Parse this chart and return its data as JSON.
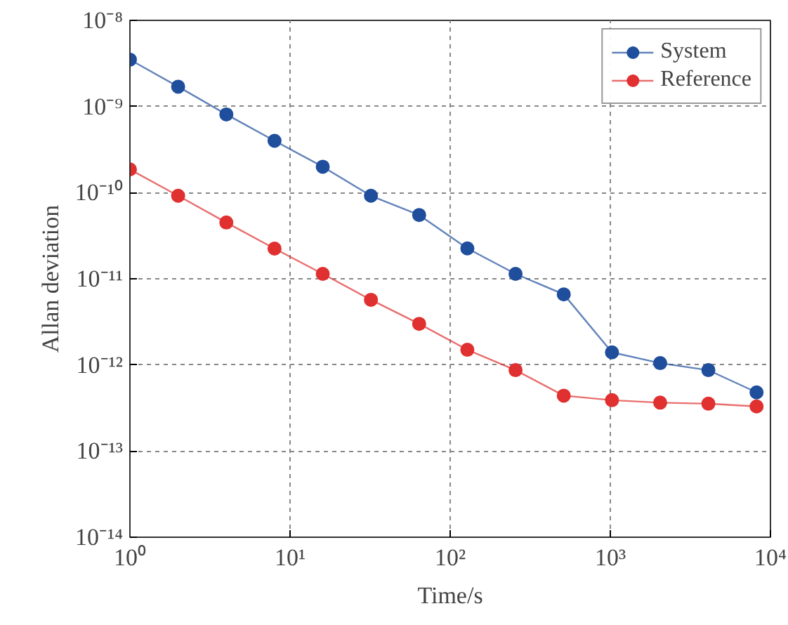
{
  "chart_data": {
    "type": "line",
    "xlabel": "Time/s",
    "ylabel": "Allan deviation",
    "log": "xy",
    "grid": true,
    "legend": "top right",
    "marker": "circle",
    "line_style": "solid",
    "x": [
      1,
      2,
      4,
      8,
      16,
      32,
      64,
      128,
      256,
      512,
      1024,
      2048,
      4096,
      8192
    ],
    "xlim": [
      1,
      10000
    ],
    "ylim": [
      1e-14,
      1e-08
    ],
    "xticks": [
      {
        "value": 1,
        "label": "10⁰"
      },
      {
        "value": 10,
        "label": "10¹"
      },
      {
        "value": 100,
        "label": "10²"
      },
      {
        "value": 1000,
        "label": "10³"
      },
      {
        "value": 10000,
        "label": "10⁴"
      }
    ],
    "yticks": [
      {
        "value": 1e-14,
        "label": "10⁻¹⁴"
      },
      {
        "value": 1e-13,
        "label": "10⁻¹³"
      },
      {
        "value": 1e-12,
        "label": "10⁻¹²"
      },
      {
        "value": 1e-11,
        "label": "10⁻¹¹"
      },
      {
        "value": 1e-10,
        "label": "10⁻¹⁰"
      },
      {
        "value": 1e-09,
        "label": "10⁻⁹"
      },
      {
        "value": 1e-08,
        "label": "10⁻⁸"
      }
    ],
    "series": [
      {
        "name": "System",
        "color": "#1f4e9c",
        "values": [
          3.5e-09,
          1.7e-09,
          8.1e-10,
          4e-10,
          2e-10,
          9.2e-11,
          5.5e-11,
          2.25e-11,
          1.14e-11,
          6.6e-12,
          1.4e-12,
          1.05e-12,
          8.7e-13,
          4.8e-13
        ]
      },
      {
        "name": "Reference",
        "color": "#e03030",
        "values": [
          1.86e-10,
          9.2e-11,
          4.5e-11,
          2.24e-11,
          1.14e-11,
          5.7e-12,
          3e-12,
          1.5e-12,
          8.7e-13,
          4.4e-13,
          3.9e-13,
          3.65e-13,
          3.55e-13,
          3.3e-13
        ]
      }
    ]
  }
}
